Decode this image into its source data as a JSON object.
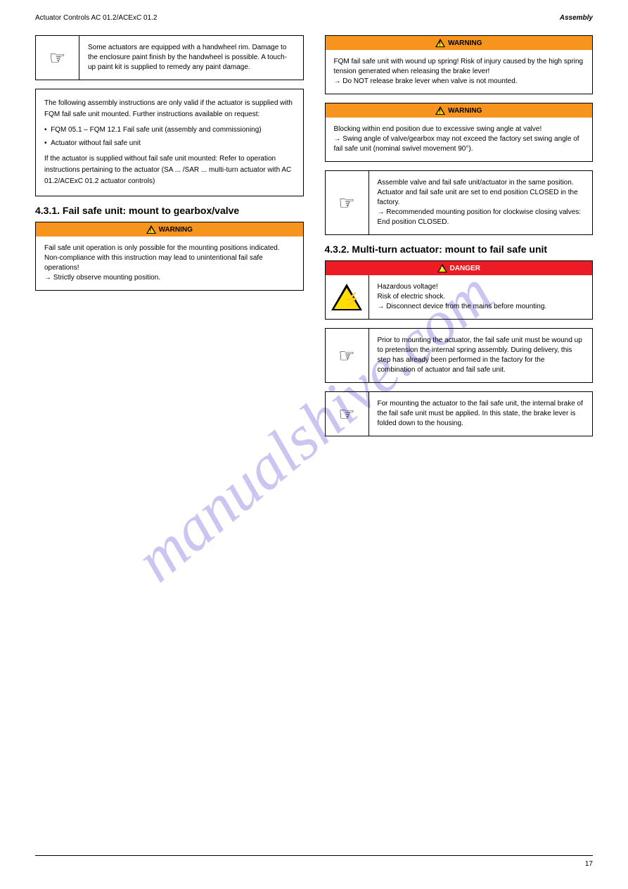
{
  "header": {
    "left": "Actuator Controls AC 01.2/ACExC 01.2",
    "right": "Assembly"
  },
  "watermark": "manualshive.com",
  "colors": {
    "orange": "#f7941d",
    "red": "#ed1c24",
    "yellow": "#ffde00",
    "black": "#000000",
    "white": "#ffffff",
    "watermark_color": "#6b5fd8"
  },
  "left_column": {
    "info_box": {
      "text": "Some actuators are equipped with a handwheel rim. Damage to the enclosure paint finish by the handwheel is possible. A touch-up paint kit is supplied to remedy any paint damage."
    },
    "flex_box": {
      "intro": "The following assembly instructions are only valid if the actuator is supplied with FQM fail safe unit mounted. Further instructions available on request:",
      "items": [
        "FQM 05.1 – FQM 12.1 Fail safe unit (assembly and commissioning)",
        "Actuator without fail safe unit"
      ],
      "extra": "If the actuator is supplied without fail safe unit mounted: Refer to operation instructions pertaining to the actuator (SA ... /SAR ... multi-turn actuator with AC 01.2/ACExC 01.2 actuator controls)"
    },
    "section_label": "4.3.1.     Fail safe unit: mount to gearbox/valve",
    "warning_box": {
      "label": "WARNING",
      "body": "Fail safe unit operation is only possible for the mounting positions indicated. Non-compliance with this instruction may lead to unintentional fail safe operations!\n→ Strictly observe mounting position."
    }
  },
  "right_column": {
    "warn1": {
      "label": "WARNING",
      "body": "FQM fail safe unit with wound up spring! Risk of injury caused by the high spring tension generated when releasing the brake lever!\n→ Do NOT release brake lever when valve is not mounted."
    },
    "warn2": {
      "label": "WARNING",
      "body": "Blocking within end position due to excessive swing angle at valve!\n→ Swing angle of valve/gearbox may not exceed the factory set swing angle of fail safe unit (nominal swivel movement 90°)."
    },
    "note1": {
      "text": "Assemble valve and fail safe unit/actuator in the same position. Actuator and fail safe unit are set to end position CLOSED in the factory.\n→ Recommended mounting position for clockwise closing valves: End position CLOSED."
    },
    "section_label": "4.3.2.     Multi-turn actuator: mount to fail safe unit",
    "danger_box": {
      "label": "DANGER",
      "body": "Hazardous voltage!\nRisk of electric shock.\n→ Disconnect device from the mains before mounting."
    },
    "note2": {
      "text": "Prior to mounting the actuator, the fail safe unit must be wound up to pretension the internal spring assembly. During delivery, this step has already been performed in the factory for the combination of actuator and fail safe unit."
    },
    "note3": {
      "text": "For mounting the actuator to the fail safe unit, the internal brake of the fail safe unit must be applied. In this state, the brake lever is folded down to the housing."
    }
  },
  "footer": {
    "page": "17",
    "left": ""
  }
}
